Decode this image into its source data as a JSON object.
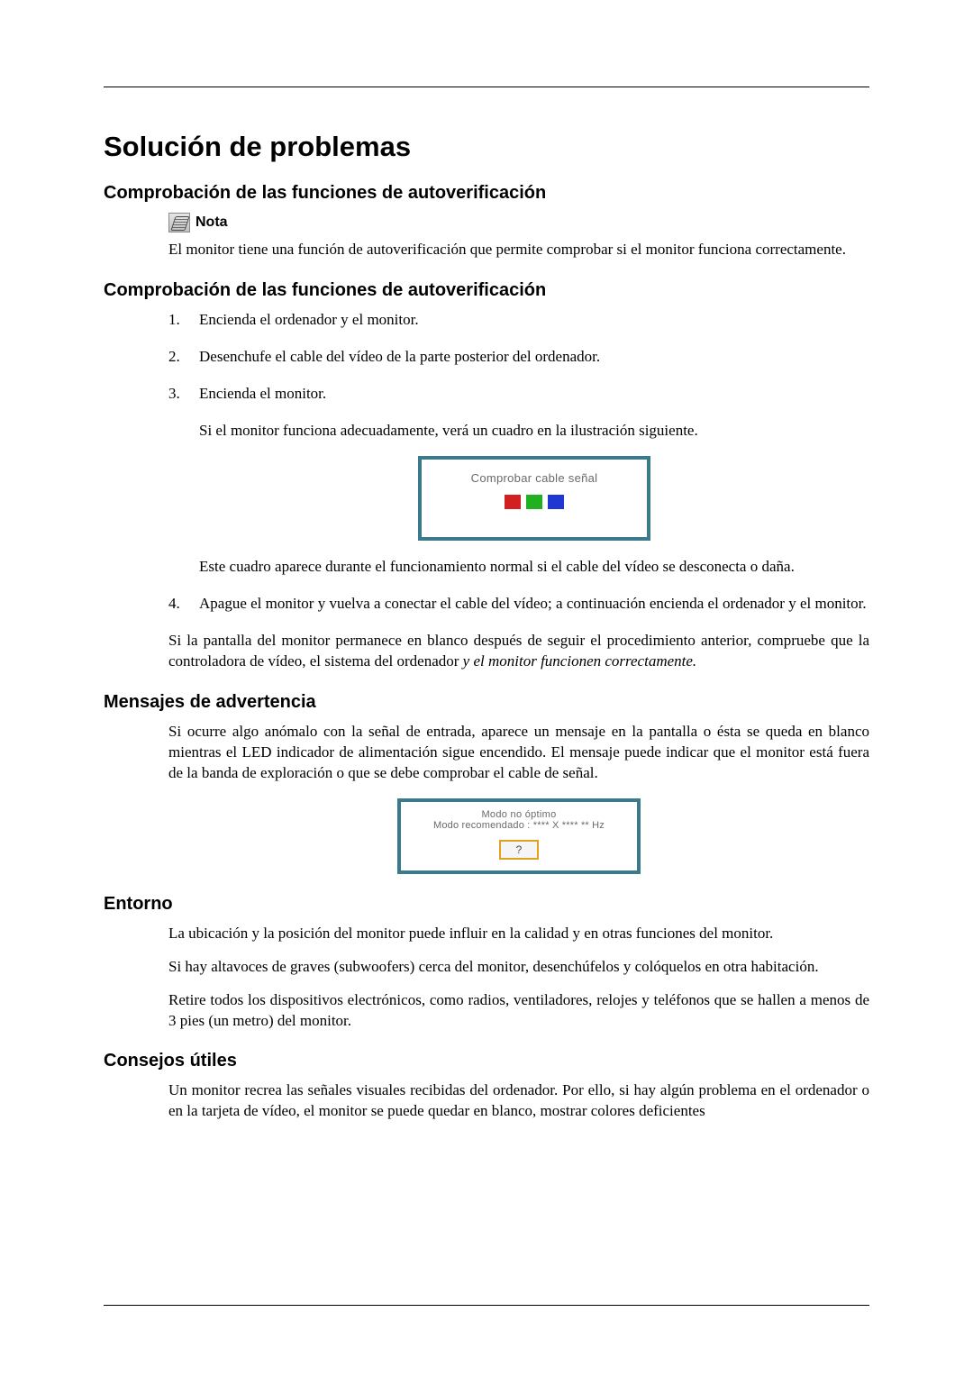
{
  "colors": {
    "text": "#000000",
    "figure_border": "#3b7a8a",
    "figure_text": "#6a6a6a",
    "btn_border": "#e0a020",
    "btn_bg": "#f5f5f5",
    "swatch_red": "#d22020",
    "swatch_green": "#20b020",
    "swatch_blue": "#2038d2"
  },
  "title": "Solución de problemas",
  "s1": {
    "heading": "Comprobación de las funciones de autoverificación",
    "note_label": "Nota",
    "note_body": "El monitor tiene una función de autoverificación que permite comprobar si el monitor funciona correctamente."
  },
  "s2": {
    "heading": "Comprobación de las funciones de autoverificación",
    "steps": {
      "i1": "Encienda el ordenador y el monitor.",
      "i2": "Desenchufe el cable del vídeo de la parte posterior del ordenador.",
      "i3": "Encienda el monitor.",
      "i3_sub1": "Si el monitor funciona adecuadamente, verá un cuadro en la ilustración siguiente.",
      "fig1_text": "Comprobar cable señal",
      "i3_sub2": "Este cuadro aparece durante el funcionamiento normal si el cable del vídeo se desconecta o daña.",
      "i4": "Apague el monitor y vuelva a conectar el cable del vídeo; a continuación encienda el ordenador y el monitor."
    },
    "tail_a": "Si la pantalla del monitor permanece en blanco después de seguir el procedimiento anterior, compruebe que la controladora de vídeo, el sistema del ordenador ",
    "tail_b_italic": "y el monitor funcionen correctamente."
  },
  "s3": {
    "heading": "Mensajes de advertencia",
    "body": "Si ocurre algo anómalo con la señal de entrada, aparece un mensaje en la pantalla o ésta se queda en blanco mientras el LED indicador de alimentación sigue encendido. El mensaje puede indicar que el monitor está fuera de la banda de exploración o que se debe comprobar el cable de señal.",
    "fig2_line1": "Modo no óptimo",
    "fig2_line2": "Modo recomendado : **** X **** ** Hz",
    "fig2_btn": "?"
  },
  "s4": {
    "heading": "Entorno",
    "p1": "La ubicación y la posición del monitor puede influir en la calidad y en otras funciones del monitor.",
    "p2": "Si hay altavoces de graves (subwoofers) cerca del monitor, desenchúfelos y colóquelos en otra habitación.",
    "p3": "Retire todos los dispositivos electrónicos, como radios, ventiladores, relojes y teléfonos que se hallen a menos de 3 pies (un metro) del monitor."
  },
  "s5": {
    "heading": "Consejos útiles",
    "p1": "Un monitor recrea las señales visuales recibidas del ordenador. Por ello, si hay algún problema en el ordenador o en la tarjeta de vídeo, el monitor se puede quedar en blanco, mostrar colores deficientes"
  }
}
